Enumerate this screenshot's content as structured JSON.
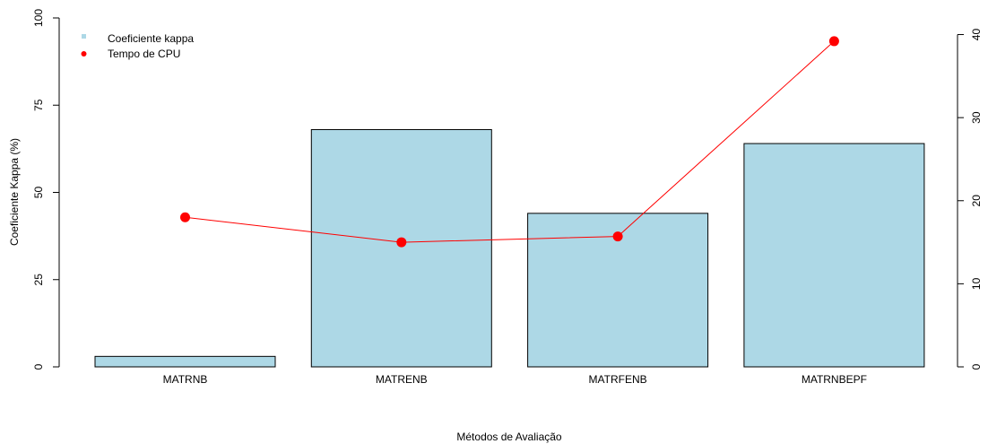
{
  "chart_data": {
    "type": "bar",
    "categories": [
      "MATRNB",
      "MATRENB",
      "MATRFENB",
      "MATRNBEPF"
    ],
    "xlabel": "Métodos de Avaliação",
    "ylabel": "Coeficiente Kappa (%)",
    "ylim": [
      0,
      100
    ],
    "yticks": [
      "0",
      "25",
      "50",
      "75",
      "100"
    ],
    "y2lim": [
      0,
      42
    ],
    "y2ticks": [
      "0",
      "10",
      "20",
      "30",
      "40"
    ],
    "grid": false,
    "legend_position": "top-left",
    "series": [
      {
        "name": "Coeficiente kappa",
        "kind": "bar",
        "axis": "left",
        "color": "#add8e6",
        "values": [
          3,
          68,
          44,
          64
        ]
      },
      {
        "name": "Tempo de CPU",
        "kind": "line",
        "axis": "right",
        "color": "#ff0000",
        "values": [
          18,
          15,
          15.7,
          39.2
        ]
      }
    ]
  }
}
